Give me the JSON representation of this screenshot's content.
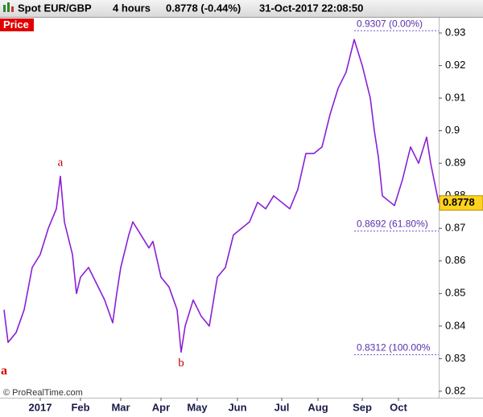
{
  "chart_data": {
    "type": "line",
    "header": {
      "symbol": "Spot EUR/GBP",
      "period": "4 hours",
      "quote": "0.8778 (-0.44%)",
      "timestamp": "31-Oct-2017 22:08:50"
    },
    "panel_label": "Price",
    "copyright": "© ProRealTime.com",
    "x": [
      1,
      2,
      4,
      6,
      8,
      10,
      12,
      14,
      15,
      16,
      18,
      19,
      20,
      22,
      24,
      26,
      28,
      29,
      30,
      32,
      33,
      35,
      37,
      38,
      40,
      42,
      44,
      45,
      46,
      48,
      50,
      52,
      54,
      56,
      58,
      60,
      62,
      64,
      66,
      68,
      70,
      72,
      74,
      76,
      78,
      80,
      82,
      84,
      86,
      88,
      90,
      92,
      93,
      94,
      95,
      97,
      98,
      100,
      102,
      104,
      106,
      107,
      109
    ],
    "series": [
      {
        "name": "EUR/GBP",
        "color": "#8a1fd6",
        "values": [
          0.845,
          0.835,
          0.838,
          0.845,
          0.858,
          0.862,
          0.87,
          0.876,
          0.886,
          0.872,
          0.862,
          0.85,
          0.855,
          0.858,
          0.853,
          0.848,
          0.841,
          0.85,
          0.858,
          0.868,
          0.872,
          0.868,
          0.864,
          0.866,
          0.855,
          0.852,
          0.845,
          0.832,
          0.84,
          0.848,
          0.843,
          0.84,
          0.855,
          0.858,
          0.868,
          0.87,
          0.872,
          0.878,
          0.876,
          0.88,
          0.878,
          0.876,
          0.882,
          0.893,
          0.893,
          0.895,
          0.905,
          0.913,
          0.918,
          0.928,
          0.92,
          0.91,
          0.9,
          0.892,
          0.88,
          0.878,
          0.877,
          0.885,
          0.895,
          0.89,
          0.898,
          0.89,
          0.8778
        ]
      }
    ],
    "last_price": 0.8778,
    "xlim": [
      0,
      109
    ],
    "xticks": [
      {
        "value": 10,
        "label": "2017"
      },
      {
        "value": 20,
        "label": "Feb"
      },
      {
        "value": 30,
        "label": "Mar"
      },
      {
        "value": 40,
        "label": "Apr"
      },
      {
        "value": 49,
        "label": "May"
      },
      {
        "value": 59,
        "label": "Jun"
      },
      {
        "value": 70,
        "label": "Jul"
      },
      {
        "value": 79,
        "label": "Aug"
      },
      {
        "value": 90,
        "label": "Sep"
      },
      {
        "value": 99,
        "label": "Oct"
      }
    ],
    "ylim": [
      0.818,
      0.9347
    ],
    "yticks": [
      0.82,
      0.83,
      0.84,
      0.85,
      0.86,
      0.87,
      0.88,
      0.89,
      0.9,
      0.91,
      0.92,
      0.93
    ],
    "fib_levels": [
      {
        "value": 0.9307,
        "label": "0.9307 (0.00%)"
      },
      {
        "value": 0.8692,
        "label": "0.8692 (61.80%)"
      },
      {
        "value": 0.8312,
        "label": "0.8312 (100.00%"
      }
    ],
    "annotations": [
      {
        "text": "a",
        "x": 15,
        "y": 0.89
      },
      {
        "text": "b",
        "x": 45,
        "y": 0.8285
      },
      {
        "text": "a",
        "x": 1,
        "y": 0.826
      }
    ]
  }
}
